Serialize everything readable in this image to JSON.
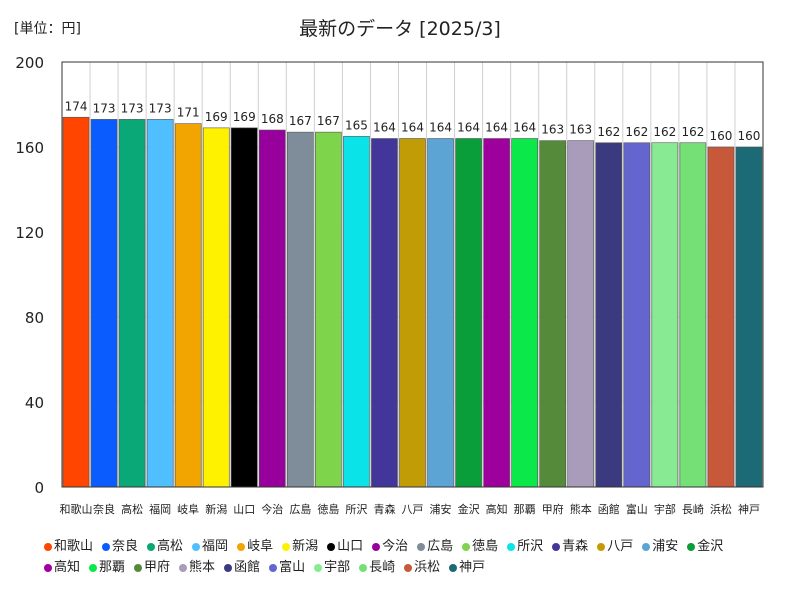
{
  "unit_label": "[単位：円]",
  "chart_data": {
    "type": "bar",
    "title": "最新のデータ [2025/3]",
    "xlabel": "",
    "ylabel": "",
    "ylim": [
      0,
      200
    ],
    "yticks": [
      0,
      40,
      80,
      120,
      160,
      200
    ],
    "grid": true,
    "legend": "bottom",
    "categories": [
      "和歌山",
      "奈良",
      "高松",
      "福岡",
      "岐阜",
      "新潟",
      "山口",
      "今治",
      "広島",
      "徳島",
      "所沢",
      "青森",
      "八戸",
      "浦安",
      "金沢",
      "高知",
      "那覇",
      "甲府",
      "熊本",
      "函館",
      "富山",
      "宇部",
      "長崎",
      "浜松",
      "神戸"
    ],
    "values": [
      174,
      173,
      173,
      173,
      171,
      169,
      169,
      168,
      167,
      167,
      165,
      164,
      164,
      164,
      164,
      164,
      164,
      163,
      163,
      162,
      162,
      162,
      162,
      160,
      160
    ],
    "colors": [
      "#ff4500",
      "#0b5cff",
      "#0aa876",
      "#4fbfff",
      "#f2a500",
      "#fff200",
      "#000000",
      "#98009e",
      "#7f8c99",
      "#7ed44b",
      "#0ae3e8",
      "#43369a",
      "#c29c07",
      "#5ca4d4",
      "#0a9e3a",
      "#9e009e",
      "#0ae84a",
      "#548a39",
      "#a89cba",
      "#3b3a80",
      "#6565cf",
      "#88eb93",
      "#75e075",
      "#c7583a",
      "#1b6a76"
    ]
  }
}
